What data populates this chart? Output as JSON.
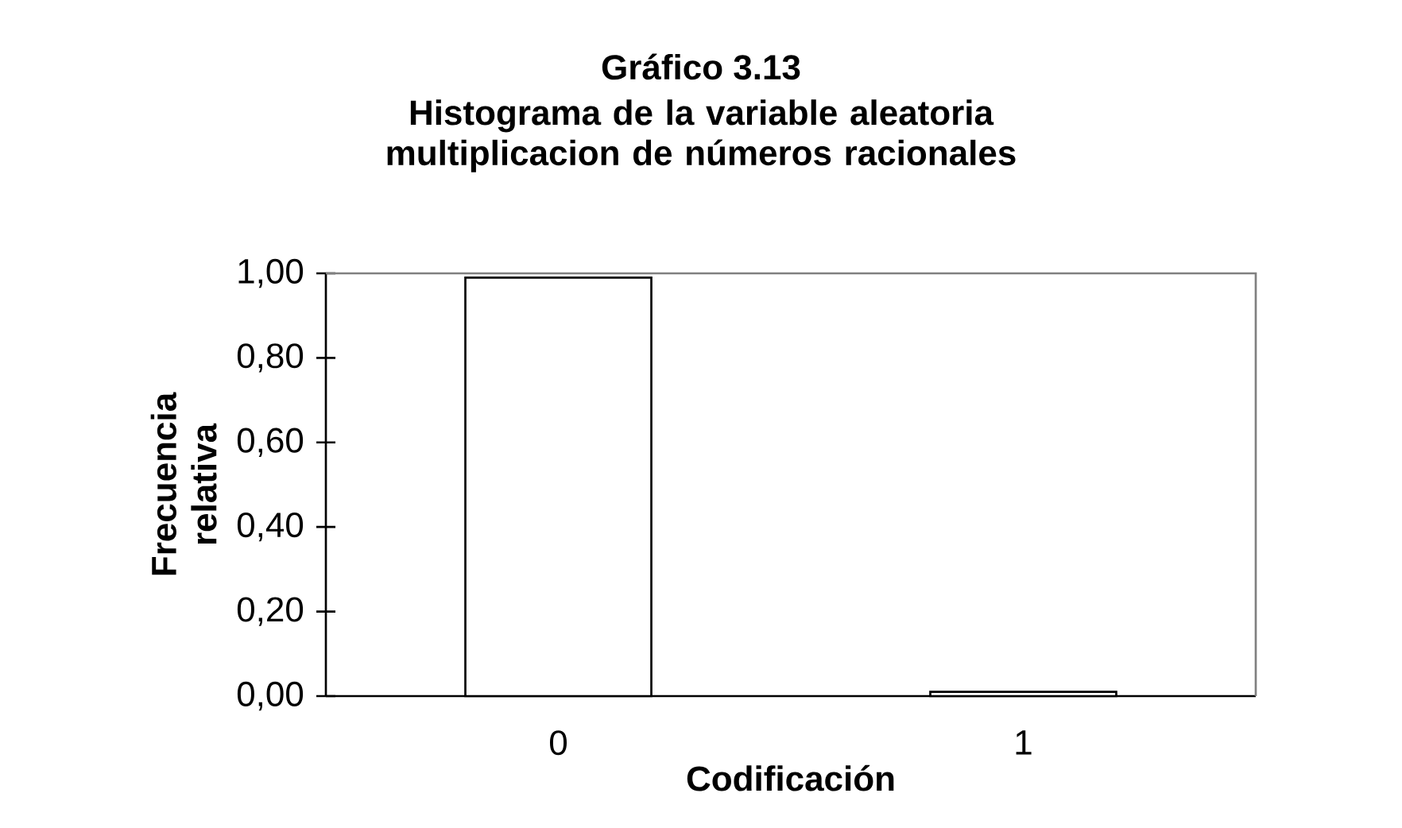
{
  "chart_data": {
    "type": "bar",
    "title": "Gráfico 3.13",
    "subtitle": "Histograma de la variable aleatoria multiplicacion de números racionales",
    "xlabel": "Codificación",
    "ylabel": "Frecuencia relativa",
    "categories": [
      "0",
      "1"
    ],
    "values": [
      0.99,
      0.01
    ],
    "color": "#ffffff",
    "ylim": [
      0,
      1
    ],
    "yticks": [
      {
        "value": 0,
        "label": "0,00"
      },
      {
        "value": 0.2,
        "label": "0,20"
      },
      {
        "value": 0.4,
        "label": "0,40"
      },
      {
        "value": 0.6,
        "label": "0,60"
      },
      {
        "value": 0.8,
        "label": "0,80"
      },
      {
        "value": 1,
        "label": "1,00"
      }
    ],
    "grid": false
  }
}
